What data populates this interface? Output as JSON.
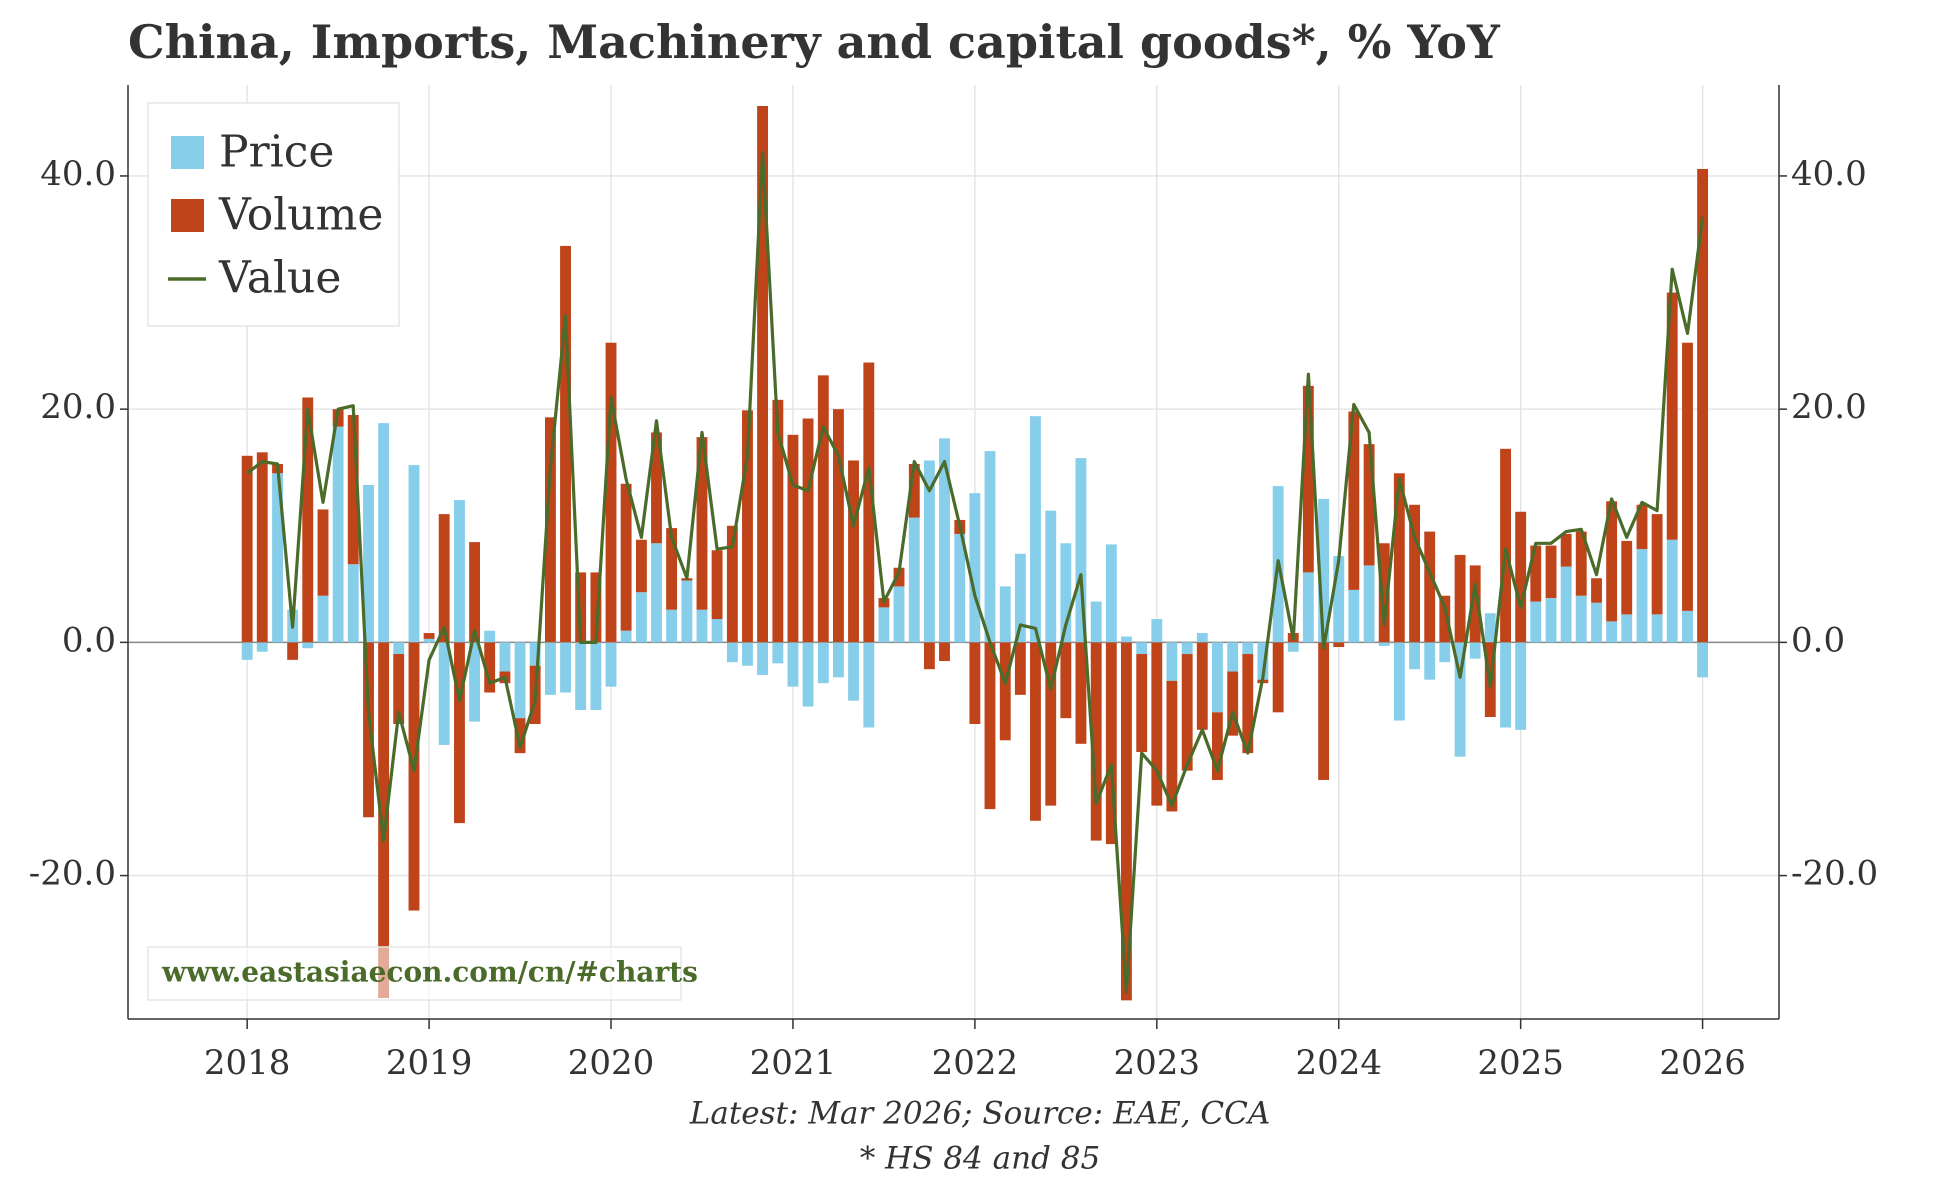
{
  "chart_data": {
    "type": "stacked-bar-line",
    "title": "China, Imports, Machinery and capital goods*, % YoY",
    "footnote": "Latest: Mar 2026; Source: EAE, CCA",
    "note": "* HS 84 and 85",
    "watermark": "www.eastasiaecon.com/cn/#charts",
    "xlim": [
      2017.345,
      2026.42
    ],
    "xticks": [
      2018,
      2019,
      2020,
      2021,
      2022,
      2023,
      2024,
      2025,
      2026
    ],
    "ylim": [
      -32.3,
      47.8
    ],
    "yticks": [
      {
        "value": -20,
        "label": "-20.0"
      },
      {
        "value": 0,
        "label": "0.0"
      },
      {
        "value": 20,
        "label": "20.0"
      },
      {
        "value": 40,
        "label": "40.0"
      }
    ],
    "grid": true,
    "legend": "top-left",
    "x": [
      2018,
      2018.083,
      2018.167,
      2018.25,
      2018.333,
      2018.417,
      2018.5,
      2018.583,
      2018.667,
      2018.75,
      2018.833,
      2018.917,
      2019,
      2019.083,
      2019.167,
      2019.25,
      2019.333,
      2019.417,
      2019.5,
      2019.583,
      2019.667,
      2019.75,
      2019.833,
      2019.917,
      2020,
      2020.083,
      2020.167,
      2020.25,
      2020.333,
      2020.417,
      2020.5,
      2020.583,
      2020.667,
      2020.75,
      2020.833,
      2020.917,
      2021,
      2021.083,
      2021.167,
      2021.25,
      2021.333,
      2021.417,
      2021.5,
      2021.583,
      2021.667,
      2021.75,
      2021.833,
      2021.917,
      2022,
      2022.083,
      2022.167,
      2022.25,
      2022.333,
      2022.417,
      2022.5,
      2022.583,
      2022.667,
      2022.75,
      2022.833,
      2022.917,
      2023,
      2023.083,
      2023.167,
      2023.25,
      2023.333,
      2023.417,
      2023.5,
      2023.583,
      2023.667,
      2023.75,
      2023.833,
      2023.917,
      2024,
      2024.083,
      2024.167,
      2024.25,
      2024.333,
      2024.417,
      2024.5,
      2024.583,
      2024.667,
      2024.75,
      2024.833,
      2024.917,
      2025,
      2025.083,
      2025.167,
      2025.25,
      2025.333,
      2025.417,
      2025.5,
      2025.583,
      2025.667,
      2025.75,
      2025.833,
      2025.917,
      2026
    ],
    "series": [
      {
        "name": "Price",
        "kind": "bar",
        "color": "#87ceeb",
        "values": [
          -1.5,
          -0.8,
          14.5,
          2.8,
          -0.5,
          4,
          18.5,
          6.7,
          13.5,
          18.8,
          -1,
          15.2,
          0.3,
          -8.8,
          12.2,
          -6.8,
          1,
          -2.5,
          -6.5,
          -2,
          -4.5,
          -4.3,
          -5.8,
          -5.8,
          -3.8,
          1,
          4.3,
          8.5,
          2.8,
          5.3,
          2.8,
          2,
          -1.7,
          -2,
          -2.8,
          -1.8,
          -3.8,
          -5.5,
          -3.5,
          -3,
          -5,
          -7.3,
          3,
          4.8,
          10.7,
          15.6,
          17.5,
          9.3,
          12.8,
          16.4,
          4.8,
          7.6,
          19.4,
          11.3,
          8.5,
          15.8,
          3.5,
          8.4,
          0.5,
          -1,
          2,
          -3.3,
          -1,
          0.8,
          -6,
          -2.5,
          -1,
          -3.2,
          13.4,
          -0.8,
          6,
          12.3,
          7.4,
          4.5,
          6.6,
          -0.3,
          -6.7,
          -2.3,
          -3.2,
          -1.7,
          -9.8,
          -1.4,
          2.5,
          -7.3,
          -7.5,
          3.5,
          3.8,
          6.5,
          4,
          3.4,
          1.8,
          2.4,
          8,
          2.4,
          8.8,
          2.7,
          -3
        ]
      },
      {
        "name": "Volume",
        "kind": "bar",
        "color": "#c0441a",
        "values": [
          16,
          16.3,
          0.8,
          -1.5,
          21,
          7.4,
          1.5,
          12.8,
          -15,
          -30.5,
          -6,
          -23,
          0.5,
          11,
          -15.5,
          8.6,
          -4.3,
          -1,
          -3,
          -5,
          19.3,
          34,
          6,
          6,
          25.7,
          12.6,
          4.5,
          9.5,
          7,
          0.2,
          14.8,
          5.9,
          10,
          19.9,
          46,
          20.8,
          17.8,
          19.2,
          22.9,
          20,
          15.6,
          24,
          0.8,
          1.6,
          4.6,
          -2.3,
          -1.6,
          1.2,
          -7,
          -14.3,
          -8.4,
          -4.5,
          -15.3,
          -14,
          -6.5,
          -8.7,
          -17,
          -17.3,
          -30.7,
          -8.4,
          -14,
          -11.2,
          -10,
          -7.5,
          -5.8,
          -5.5,
          -8.5,
          -0.3,
          -6,
          0.8,
          16,
          -11.8,
          -0.4,
          15.3,
          10.4,
          8.5,
          14.5,
          11.8,
          9.5,
          4,
          7.5,
          6.6,
          -6.4,
          16.6,
          11.2,
          4.8,
          4.5,
          2.8,
          5.5,
          2.1,
          10.3,
          6.3,
          3.8,
          8.6,
          21.2,
          23,
          40.6
        ]
      },
      {
        "name": "Value",
        "kind": "line",
        "color": "#4a6b2a",
        "values": [
          14.5,
          15.5,
          15.3,
          1.3,
          20,
          12,
          20,
          20.3,
          -6,
          -17,
          -6,
          -11,
          -1.5,
          1.3,
          -5,
          1,
          -3.5,
          -3,
          -9,
          -5,
          15,
          28,
          0,
          0,
          21,
          14,
          9,
          19,
          9,
          5.5,
          18,
          8,
          8.2,
          16,
          42,
          18,
          13.5,
          13,
          18.5,
          16,
          10,
          15,
          3.5,
          6,
          15.5,
          13,
          15.5,
          10,
          4,
          0,
          -3.5,
          1.5,
          1.2,
          -4,
          1.5,
          5.8,
          -13.8,
          -10.5,
          -30,
          -9.5,
          -11,
          -14,
          -10.5,
          -7.5,
          -11,
          -6,
          -9.5,
          -3,
          7,
          0.3,
          23,
          -0.5,
          7,
          20.4,
          18,
          1.5,
          14,
          9,
          6,
          3,
          -3,
          5,
          -3.8,
          8,
          3,
          8.5,
          8.5,
          9.5,
          9.7,
          5.8,
          12.3,
          9,
          12,
          11.3,
          32,
          26.5,
          36.5
        ]
      }
    ]
  }
}
